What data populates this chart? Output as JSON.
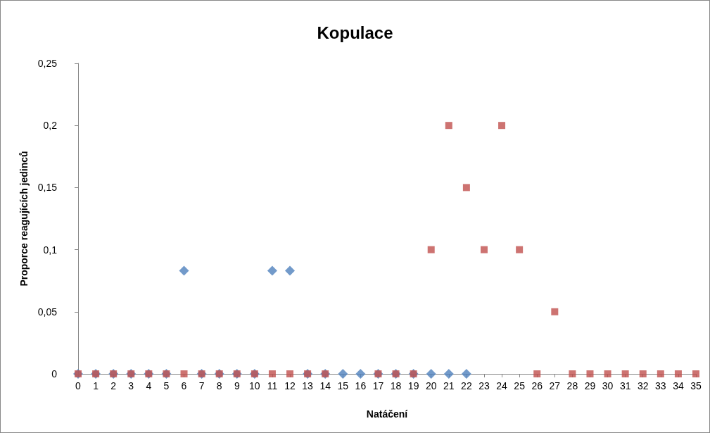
{
  "chart_data": {
    "type": "scatter",
    "title": "Kopulace",
    "xlabel": "Natáčení",
    "ylabel": "Proporce reagujících jedinců",
    "xlim": [
      0,
      35
    ],
    "xticks": [
      0,
      1,
      2,
      3,
      4,
      5,
      6,
      7,
      8,
      9,
      10,
      11,
      12,
      13,
      14,
      15,
      16,
      17,
      18,
      19,
      20,
      21,
      22,
      23,
      24,
      25,
      26,
      27,
      28,
      29,
      30,
      31,
      32,
      33,
      34,
      35
    ],
    "ylim": [
      0,
      0.25
    ],
    "yticks": [
      0,
      {
        "value": 0.05,
        "label": "0,05"
      },
      {
        "value": 0.1,
        "label": "0,1"
      },
      {
        "value": 0.15,
        "label": "0,15"
      },
      {
        "value": 0.2,
        "label": "0,2"
      },
      {
        "value": 0.25,
        "label": "0,25"
      }
    ],
    "grid": false,
    "series": [
      {
        "color": "#4f81bd",
        "marker": "diamond",
        "x": [
          0,
          1,
          2,
          3,
          4,
          5,
          6,
          7,
          8,
          9,
          10,
          11,
          12,
          13,
          14,
          15,
          16,
          17,
          18,
          19,
          20,
          21,
          22
        ],
        "values": [
          0,
          0,
          0,
          0,
          0,
          0,
          0.083,
          0,
          0,
          0,
          0,
          0.083,
          0.083,
          0,
          0,
          0,
          0,
          0,
          0,
          0,
          0,
          0,
          0
        ]
      },
      {
        "color": "#c0504d",
        "marker": "square",
        "x": [
          0,
          1,
          2,
          3,
          4,
          5,
          6,
          7,
          8,
          9,
          10,
          11,
          12,
          13,
          14,
          15,
          16,
          17,
          18,
          19,
          20,
          21,
          22,
          23,
          24,
          25,
          26,
          27,
          28,
          29,
          30,
          31,
          32,
          33,
          34,
          35
        ],
        "values": [
          0,
          0,
          0,
          0,
          0,
          0,
          0,
          0,
          0,
          0,
          0,
          0,
          0,
          0,
          0,
          null,
          null,
          0,
          0,
          0,
          0.1,
          0.2,
          0.15,
          0.1,
          0.2,
          0.1,
          0,
          0.05,
          0,
          0,
          0,
          0,
          0,
          0,
          0,
          0
        ]
      }
    ]
  }
}
